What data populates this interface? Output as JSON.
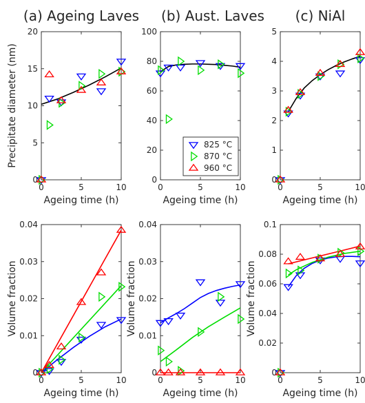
{
  "chart_data": [
    {
      "id": "a1",
      "type": "scatter",
      "title": "(a) Ageing Laves",
      "xlabel": "Ageing time (h)",
      "ylabel": "Precipitate diameter (nm)",
      "xlim": [
        0,
        10
      ],
      "ylim": [
        0,
        20
      ],
      "xticks": [
        0,
        5,
        10
      ],
      "yticks": [
        0,
        5,
        10,
        15,
        20
      ],
      "series": [
        {
          "name": "825 °C",
          "marker": "triangle-down",
          "color": "#0000ff",
          "x": [
            0,
            1,
            2.5,
            5,
            7.5,
            10
          ],
          "y": [
            0,
            11,
            10.5,
            14,
            12,
            16
          ]
        },
        {
          "name": "870 °C",
          "marker": "triangle-right",
          "color": "#00dd00",
          "x": [
            0,
            1,
            2.5,
            5,
            7.5,
            10
          ],
          "y": [
            0,
            7.4,
            10.4,
            12.7,
            14.3,
            14.6
          ]
        },
        {
          "name": "960 °C",
          "marker": "triangle-up",
          "color": "#ff0000",
          "x": [
            0,
            1,
            2.5,
            5,
            7.5,
            10
          ],
          "y": [
            0,
            14.2,
            10.7,
            12.1,
            13.1,
            14.6
          ]
        }
      ],
      "fits": [
        {
          "color": "#000000",
          "x": [
            0,
            2,
            4,
            6,
            8,
            10
          ],
          "y": [
            10.2,
            10.9,
            11.8,
            12.8,
            13.9,
            15.1
          ]
        }
      ]
    },
    {
      "id": "b1",
      "type": "scatter",
      "title": "(b) Aust. Laves",
      "xlabel": "Ageing time (h)",
      "ylabel": "",
      "xlim": [
        0,
        10
      ],
      "ylim": [
        0,
        100
      ],
      "xticks": [
        0,
        5,
        10
      ],
      "yticks": [
        0,
        20,
        40,
        60,
        80,
        100
      ],
      "series": [
        {
          "name": "825 °C",
          "marker": "triangle-down",
          "color": "#0000ff",
          "x": [
            0,
            1,
            2.5,
            5,
            7.5,
            10
          ],
          "y": [
            72,
            76,
            76,
            79,
            77,
            77
          ]
        },
        {
          "name": "870 °C",
          "marker": "triangle-right",
          "color": "#00dd00",
          "x": [
            0,
            1,
            2.5,
            5,
            7.5,
            10
          ],
          "y": [
            74,
            41,
            80,
            74,
            78,
            72
          ]
        },
        {
          "name": "960 °C",
          "marker": "triangle-up",
          "color": "#ff0000",
          "x": [],
          "y": []
        }
      ],
      "fits": [
        {
          "color": "#000000",
          "x": [
            0,
            1,
            2,
            3,
            4,
            5,
            6,
            7,
            8,
            9,
            10
          ],
          "y": [
            73,
            76.5,
            77.6,
            78,
            78.2,
            78.2,
            78,
            77.8,
            77.3,
            76.8,
            76
          ]
        }
      ],
      "legend": {
        "placement": "lower-right",
        "entries": [
          {
            "label": "825 °C",
            "marker": "triangle-down",
            "color": "#0000ff"
          },
          {
            "label": "870 °C",
            "marker": "triangle-right",
            "color": "#00dd00"
          },
          {
            "label": "960 °C",
            "marker": "triangle-up",
            "color": "#ff0000"
          }
        ]
      }
    },
    {
      "id": "c1",
      "type": "scatter",
      "title": "(c) NiAl",
      "xlabel": "Ageing time (h)",
      "ylabel": "",
      "xlim": [
        0,
        10
      ],
      "ylim": [
        0,
        5
      ],
      "xticks": [
        0,
        5,
        10
      ],
      "yticks": [
        0,
        1,
        2,
        3,
        4,
        5
      ],
      "series": [
        {
          "name": "825 °C",
          "marker": "triangle-down",
          "color": "#0000ff",
          "x": [
            0,
            1,
            2.5,
            5,
            7.5,
            10
          ],
          "y": [
            0,
            2.25,
            2.85,
            3.5,
            3.6,
            4.05
          ]
        },
        {
          "name": "870 °C",
          "marker": "triangle-right",
          "color": "#00dd00",
          "x": [
            0,
            1,
            2.5,
            5,
            7.5,
            10
          ],
          "y": [
            0,
            2.3,
            2.9,
            3.5,
            3.9,
            4.1
          ]
        },
        {
          "name": "960 °C",
          "marker": "triangle-up",
          "color": "#ff0000",
          "x": [
            0,
            1,
            2.5,
            5,
            7.5,
            10
          ],
          "y": [
            0,
            2.35,
            2.95,
            3.6,
            3.9,
            4.3
          ]
        }
      ],
      "fits": [
        {
          "color": "#000000",
          "x": [
            1,
            2,
            3,
            4,
            5,
            6,
            7,
            8,
            9,
            10
          ],
          "y": [
            2.3,
            2.75,
            3.1,
            3.35,
            3.55,
            3.72,
            3.86,
            3.98,
            4.08,
            4.17
          ]
        }
      ]
    },
    {
      "id": "a2",
      "type": "scatter",
      "title": "",
      "xlabel": "Ageing time (h)",
      "ylabel": "Volume fraction",
      "xlim": [
        0,
        10
      ],
      "ylim": [
        0,
        0.04
      ],
      "xticks": [
        0,
        5,
        10
      ],
      "yticks": [
        0,
        0.01,
        0.02,
        0.03,
        0.04
      ],
      "series": [
        {
          "name": "825 °C",
          "marker": "triangle-down",
          "color": "#0000ff",
          "x": [
            0,
            1,
            2.5,
            5,
            7.5,
            10
          ],
          "y": [
            0,
            0.0005,
            0.003,
            0.009,
            0.013,
            0.0143
          ]
        },
        {
          "name": "870 °C",
          "marker": "triangle-right",
          "color": "#00dd00",
          "x": [
            0,
            1,
            2.5,
            5,
            7.5,
            10
          ],
          "y": [
            0,
            0.001,
            0.0035,
            0.0095,
            0.0205,
            0.0232
          ]
        },
        {
          "name": "960 °C",
          "marker": "triangle-up",
          "color": "#ff0000",
          "x": [
            0,
            1,
            2.5,
            5,
            7.5,
            10
          ],
          "y": [
            0,
            0.002,
            0.007,
            0.019,
            0.027,
            0.0385
          ]
        }
      ],
      "fits": [
        {
          "color": "#0000ff",
          "x": [
            0,
            2,
            4,
            6,
            8,
            10
          ],
          "y": [
            0,
            0.0035,
            0.0068,
            0.0098,
            0.0124,
            0.0145
          ]
        },
        {
          "color": "#00dd00",
          "x": [
            0,
            10
          ],
          "y": [
            0,
            0.0235
          ]
        },
        {
          "color": "#ff0000",
          "x": [
            0,
            10
          ],
          "y": [
            0,
            0.0385
          ]
        }
      ]
    },
    {
      "id": "b2",
      "type": "scatter",
      "title": "",
      "xlabel": "Ageing time (h)",
      "ylabel": "Volume fraction",
      "xlim": [
        0,
        10
      ],
      "ylim": [
        0,
        0.04
      ],
      "xticks": [
        0,
        5,
        10
      ],
      "yticks": [
        0,
        0.01,
        0.02,
        0.03,
        0.04
      ],
      "series": [
        {
          "name": "825 °C",
          "marker": "triangle-down",
          "color": "#0000ff",
          "x": [
            0,
            1,
            2.5,
            5,
            7.5,
            10
          ],
          "y": [
            0.0135,
            0.014,
            0.0155,
            0.0245,
            0.019,
            0.024
          ]
        },
        {
          "name": "870 °C",
          "marker": "triangle-right",
          "color": "#00dd00",
          "x": [
            0,
            1,
            2.5,
            5,
            7.5,
            10
          ],
          "y": [
            0.006,
            0.003,
            0.0005,
            0.011,
            0.0205,
            0.0145
          ]
        },
        {
          "name": "960 °C",
          "marker": "triangle-up",
          "color": "#ff0000",
          "x": [
            0,
            1,
            2.5,
            5,
            7.5,
            10
          ],
          "y": [
            0,
            0,
            0,
            0,
            0,
            0
          ]
        }
      ],
      "fits": [
        {
          "color": "#0000ff",
          "x": [
            0,
            1,
            2,
            3,
            4,
            5,
            6,
            7,
            8,
            9,
            10
          ],
          "y": [
            0.0135,
            0.0148,
            0.016,
            0.0173,
            0.0188,
            0.0203,
            0.0214,
            0.0222,
            0.0228,
            0.0233,
            0.0237
          ]
        },
        {
          "color": "#00dd00",
          "x": [
            0,
            2,
            4,
            6,
            8,
            10
          ],
          "y": [
            0.003,
            0.0062,
            0.0095,
            0.0124,
            0.015,
            0.0175
          ]
        },
        {
          "color": "#ff0000",
          "x": [
            0,
            10
          ],
          "y": [
            0,
            0
          ]
        }
      ]
    },
    {
      "id": "c2",
      "type": "scatter",
      "title": "",
      "xlabel": "Ageing time (h)",
      "ylabel": "Volume fraction",
      "xlim": [
        0,
        10
      ],
      "ylim": [
        0,
        0.1
      ],
      "xticks": [
        0,
        5,
        10
      ],
      "yticks": [
        0,
        0.02,
        0.04,
        0.06,
        0.08,
        0.1
      ],
      "series": [
        {
          "name": "825 °C",
          "marker": "triangle-down",
          "color": "#0000ff",
          "x": [
            0,
            1,
            2.5,
            5,
            7.5,
            10
          ],
          "y": [
            0,
            0.058,
            0.066,
            0.076,
            0.077,
            0.074
          ]
        },
        {
          "name": "870 °C",
          "marker": "triangle-right",
          "color": "#00dd00",
          "x": [
            0,
            1,
            2.5,
            5,
            7.5,
            10
          ],
          "y": [
            0,
            0.067,
            0.069,
            0.077,
            0.081,
            0.082
          ]
        },
        {
          "name": "960 °C",
          "marker": "triangle-up",
          "color": "#ff0000",
          "x": [
            0,
            1,
            2.5,
            5,
            7.5,
            10
          ],
          "y": [
            0,
            0.075,
            0.078,
            0.077,
            0.08,
            0.085
          ]
        }
      ],
      "fits": [
        {
          "color": "#0000ff",
          "x": [
            1,
            2,
            3,
            4,
            5,
            6,
            7,
            8,
            9,
            10
          ],
          "y": [
            0.058,
            0.0655,
            0.0705,
            0.0738,
            0.076,
            0.0774,
            0.0782,
            0.0785,
            0.0785,
            0.0783
          ]
        },
        {
          "color": "#00dd00",
          "x": [
            1,
            2,
            4,
            6,
            8,
            10
          ],
          "y": [
            0.066,
            0.0695,
            0.0745,
            0.078,
            0.0805,
            0.082
          ]
        },
        {
          "color": "#ff0000",
          "x": [
            1,
            10
          ],
          "y": [
            0.0735,
            0.0855
          ]
        }
      ]
    }
  ]
}
